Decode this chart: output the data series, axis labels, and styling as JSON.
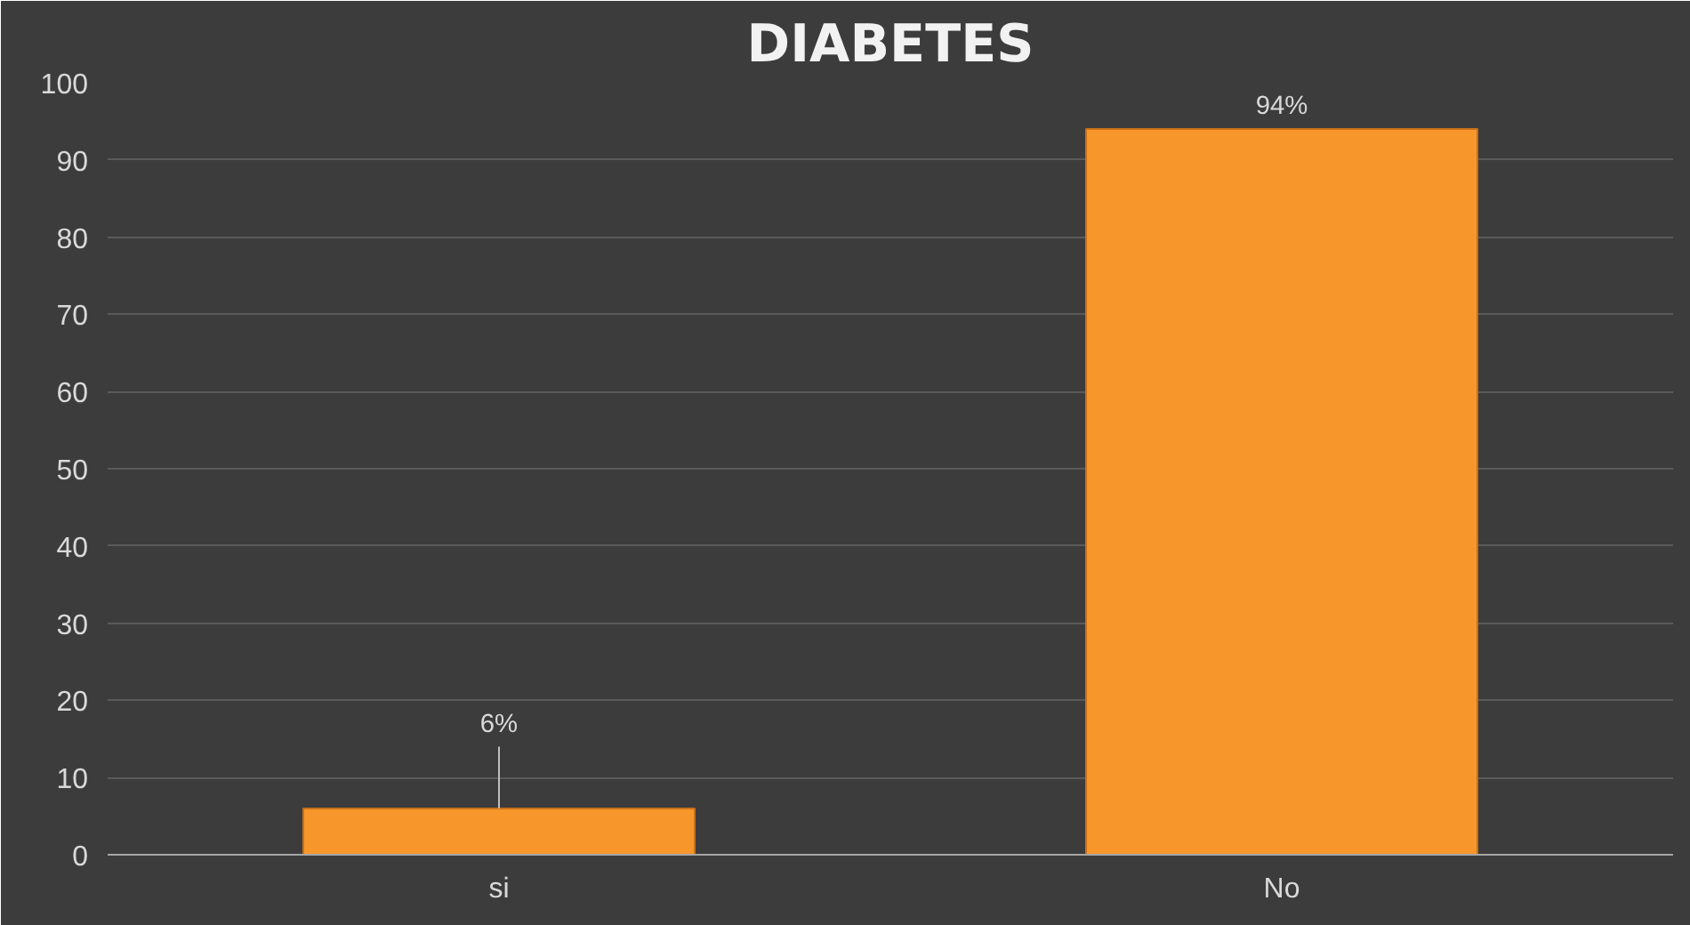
{
  "chart_data": {
    "type": "bar",
    "title": "DIABETES",
    "categories": [
      "si",
      "No"
    ],
    "values": [
      6,
      94
    ],
    "value_labels": [
      "6%",
      "94%"
    ],
    "color": "#f7972b",
    "ylim": [
      0,
      100
    ],
    "yticks": [
      0,
      10,
      20,
      30,
      40,
      50,
      60,
      70,
      80,
      90,
      100
    ],
    "grid": "y"
  }
}
